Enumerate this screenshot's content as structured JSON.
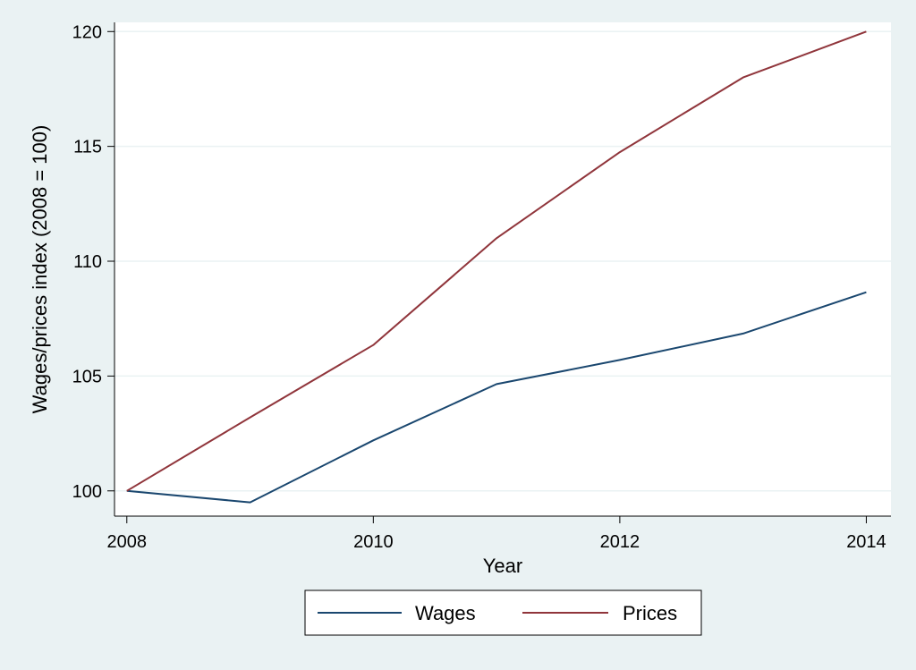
{
  "chart_data": {
    "type": "line",
    "title": "",
    "xlabel": "Year",
    "ylabel": "Wages/prices index (2008 = 100)",
    "x": [
      2008,
      2009,
      2010,
      2011,
      2012,
      2013,
      2014
    ],
    "xlim": [
      2007.9,
      2014.2
    ],
    "ylim": [
      98.9,
      120.4
    ],
    "x_ticks": [
      2008,
      2010,
      2012,
      2014
    ],
    "y_ticks": [
      100,
      105,
      110,
      115,
      120
    ],
    "grid": "horizontal",
    "legend_position": "bottom",
    "series": [
      {
        "name": "Wages",
        "color": "#1a476f",
        "values": [
          100,
          99.5,
          102.2,
          104.65,
          105.7,
          106.85,
          108.65
        ]
      },
      {
        "name": "Prices",
        "color": "#90353b",
        "values": [
          100,
          103.2,
          106.35,
          111,
          114.75,
          118,
          120
        ]
      }
    ]
  },
  "colors": {
    "background": "#eaf2f3",
    "plot_background": "#ffffff",
    "gridline": "#eaf2f3"
  }
}
